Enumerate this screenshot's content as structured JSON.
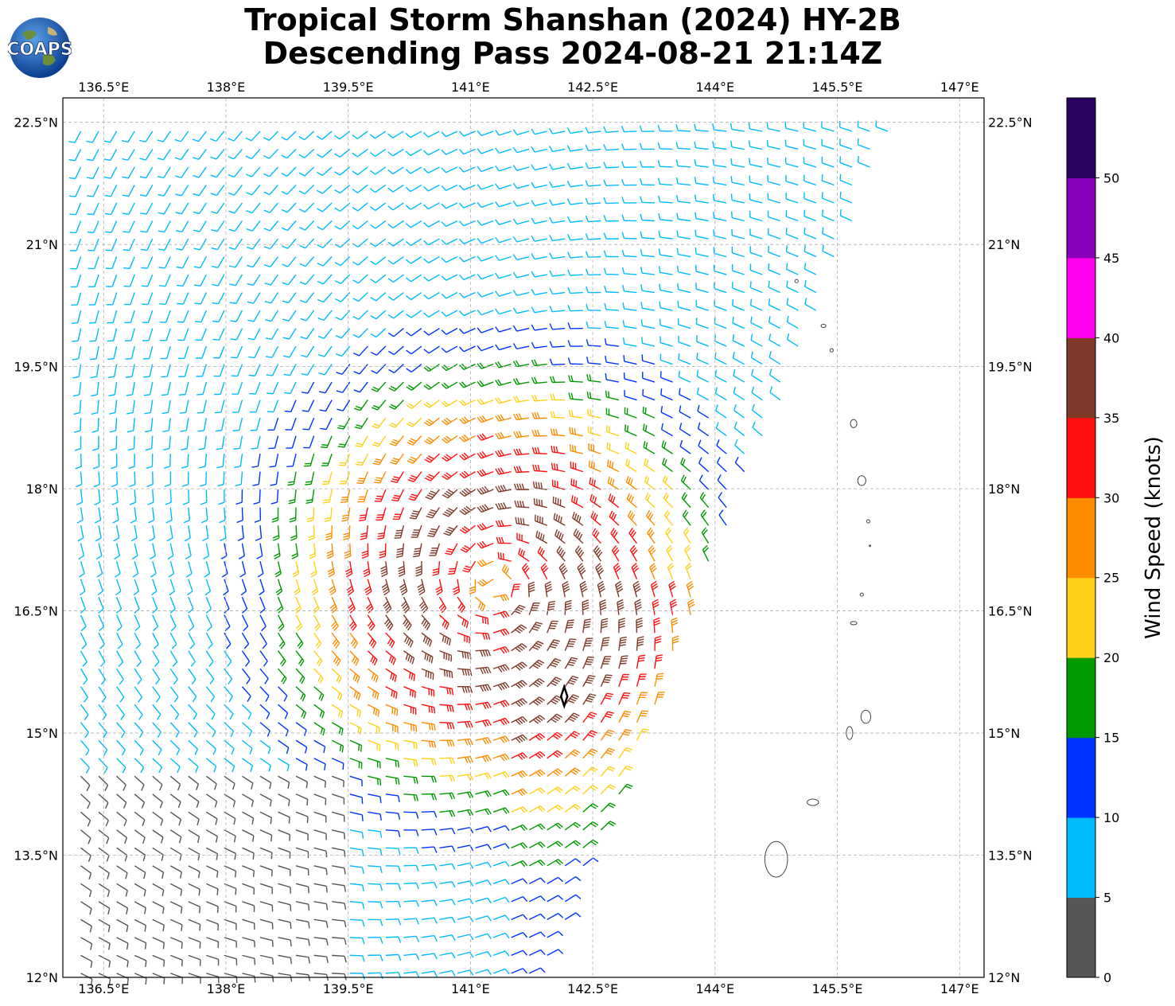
{
  "header": {
    "title_line1": "Tropical Storm Shanshan (2024) HY-2B",
    "title_line2": "Descending Pass 2024-08-21 21:14Z",
    "logo_text": "COAPS"
  },
  "map": {
    "lon_range": [
      136.0,
      147.3
    ],
    "lat_range": [
      12.0,
      22.8
    ],
    "lon_ticks": [
      136.5,
      138.0,
      139.5,
      141.0,
      142.5,
      144.0,
      145.5,
      147.0
    ],
    "lat_ticks": [
      12.0,
      13.5,
      15.0,
      16.5,
      18.0,
      19.5,
      21.0,
      22.5
    ],
    "lon_tick_labels": [
      "136.5°E",
      "138°E",
      "139.5°E",
      "141°E",
      "142.5°E",
      "144°E",
      "145.5°E",
      "147°E"
    ],
    "lat_tick_labels": [
      "12°N",
      "13.5°N",
      "15°N",
      "16.5°N",
      "18°N",
      "19.5°N",
      "21°N",
      "22.5°N"
    ],
    "grid": true,
    "storm_center": {
      "lon": 141.3,
      "lat": 16.8
    },
    "best_track_marker": {
      "lon": 142.15,
      "lat": 15.45
    }
  },
  "colorbar": {
    "label": "Wind Speed (knots)",
    "ticks": [
      "0",
      "5",
      "10",
      "15",
      "20",
      "25",
      "30",
      "35",
      "40",
      "45",
      "50"
    ],
    "colors": [
      "#555555",
      "#00bbff",
      "#0033ff",
      "#009900",
      "#ffd11a",
      "#ff8c00",
      "#ff1010",
      "#7f3a2a",
      "#ff00ee",
      "#8800bb",
      "#2a0060"
    ]
  }
}
